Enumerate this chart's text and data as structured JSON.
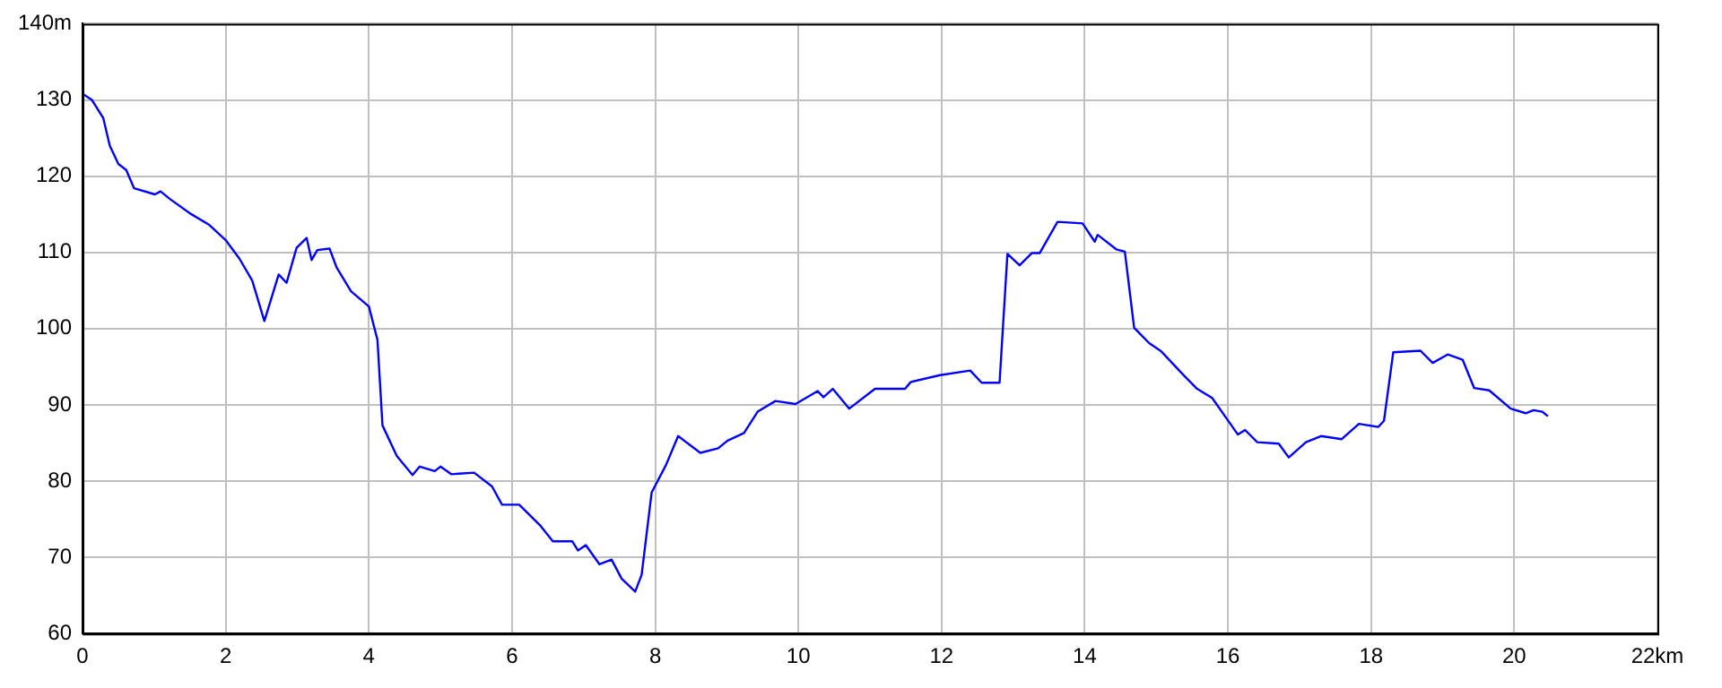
{
  "chart_data": {
    "type": "line",
    "x": [
      0,
      0.13,
      0.29,
      0.38,
      0.5,
      0.61,
      0.72,
      1.01,
      1.09,
      1.22,
      1.52,
      1.77,
      2.0,
      2.19,
      2.37,
      2.54,
      2.74,
      2.85,
      2.99,
      3.13,
      3.2,
      3.28,
      3.45,
      3.55,
      3.75,
      4.0,
      4.12,
      4.19,
      4.39,
      4.61,
      4.71,
      4.92,
      5.0,
      5.15,
      5.47,
      5.72,
      5.86,
      6.1,
      6.4,
      6.57,
      6.84,
      6.92,
      7.03,
      7.22,
      7.39,
      7.53,
      7.72,
      7.81,
      7.95,
      8.15,
      8.32,
      8.63,
      8.88,
      9.01,
      9.24,
      9.43,
      9.68,
      9.96,
      10.27,
      10.35,
      10.48,
      10.71,
      11.07,
      11.49,
      11.57,
      11.98,
      12.4,
      12.56,
      12.81,
      12.92,
      13.09,
      13.26,
      13.37,
      13.62,
      13.97,
      14.14,
      14.18,
      14.44,
      14.56,
      14.69,
      14.9,
      15.07,
      15.4,
      15.57,
      15.78,
      15.99,
      16.14,
      16.24,
      16.41,
      16.71,
      16.85,
      17.09,
      17.3,
      17.59,
      17.83,
      18.1,
      18.18,
      18.31,
      18.69,
      18.86,
      19.07,
      19.28,
      19.44,
      19.65,
      19.95,
      20.16,
      20.27,
      20.39,
      20.47
    ],
    "values": [
      130.8,
      130,
      127.6,
      124,
      121.6,
      120.8,
      118.4,
      117.6,
      118,
      117,
      115,
      113.6,
      111.6,
      109.2,
      106.3,
      101,
      107.1,
      106,
      110.6,
      111.9,
      109,
      110.3,
      110.5,
      108,
      104.9,
      102.9,
      98.5,
      87.3,
      83.3,
      80.8,
      81.9,
      81.3,
      81.9,
      80.9,
      81.1,
      79.3,
      76.9,
      76.9,
      74.1,
      72.1,
      72.1,
      70.9,
      71.6,
      69.1,
      69.7,
      67.2,
      65.5,
      67.7,
      78.5,
      82.1,
      85.9,
      83.7,
      84.3,
      85.3,
      86.3,
      89.1,
      90.5,
      90.1,
      91.8,
      91,
      92.1,
      89.5,
      92.1,
      92.1,
      93,
      93.9,
      94.5,
      92.9,
      92.9,
      109.8,
      108.3,
      109.9,
      109.9,
      114,
      113.8,
      111.4,
      112.3,
      110.4,
      110.1,
      100.1,
      98.1,
      97,
      93.7,
      92.1,
      90.9,
      88.1,
      86.1,
      86.7,
      85.1,
      84.9,
      83.1,
      85.1,
      85.9,
      85.5,
      87.5,
      87.1,
      87.9,
      96.9,
      97.1,
      95.5,
      96.6,
      95.9,
      92.2,
      91.9,
      89.5,
      88.9,
      89.3,
      89.1,
      88.5
    ],
    "color": "#0000ff",
    "xlim": [
      0,
      22
    ],
    "xticks": [
      0,
      2,
      4,
      6,
      8,
      10,
      12,
      14,
      16,
      18,
      20,
      {
        "value": 22,
        "label": "22km"
      }
    ],
    "ylim": [
      60,
      140
    ],
    "yticks": [
      60,
      70,
      80,
      90,
      100,
      110,
      120,
      130,
      {
        "value": 140,
        "label": "140m"
      }
    ],
    "grid": true,
    "legend": false,
    "marker": "none",
    "line_style": "solid"
  }
}
